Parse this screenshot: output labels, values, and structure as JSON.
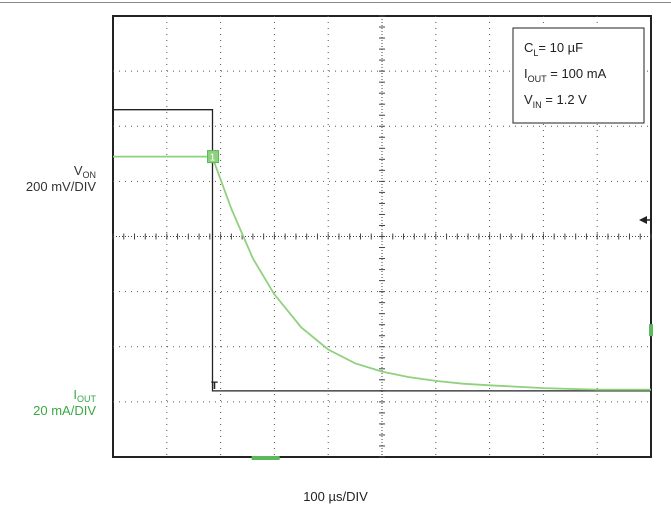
{
  "chart_data": {
    "type": "line",
    "title": "",
    "x_scale": {
      "per_div": 100,
      "unit_prefix": "100 ",
      "mu": "µ",
      "unit_suffix": "s/DIV",
      "divisions": 10
    },
    "y_scales": [
      {
        "name": "V",
        "sub": "ON",
        "per_div_label": "200 mV/DIV",
        "color": "#222222"
      },
      {
        "name": "I",
        "sub": "OUT",
        "per_div_label": "20 mA/DIV",
        "color": "#5cb85c"
      }
    ],
    "annotation": [
      {
        "main": "C",
        "sub": "L",
        "tail": "= 10 ",
        "mu": "µ",
        "end": "F"
      },
      {
        "main": "I",
        "sub": "OUT",
        "tail": " = 100 mA",
        "mu": "",
        "end": ""
      },
      {
        "main": "V",
        "sub": "IN",
        "tail": " = 1.2 V",
        "mu": "",
        "end": ""
      }
    ],
    "series": [
      {
        "name": "VON",
        "color": "#222222",
        "x": [
          0,
          185,
          185,
          195,
          1000
        ],
        "y": [
          6.3,
          6.3,
          1.2,
          1.2,
          1.2
        ]
      },
      {
        "name": "IOUT",
        "color": "#8fd17f",
        "x": [
          0,
          185,
          190,
          220,
          260,
          300,
          350,
          400,
          450,
          500,
          550,
          600,
          650,
          700,
          800,
          900,
          1000
        ],
        "y": [
          5.45,
          5.45,
          5.3,
          4.5,
          3.6,
          2.95,
          2.35,
          1.95,
          1.7,
          1.55,
          1.45,
          1.38,
          1.33,
          1.3,
          1.25,
          1.22,
          1.22
        ]
      }
    ],
    "markers": [
      {
        "label": "1",
        "series": "IOUT",
        "x": 185,
        "y": 5.45,
        "color": "#5cb85c"
      },
      {
        "label": "T",
        "series": "VON",
        "x": 185,
        "y": 1.2,
        "color": "#222222"
      }
    ],
    "xlim": [
      0,
      1000
    ],
    "ylim": [
      0,
      8
    ],
    "grid": true,
    "legend": "top-right"
  }
}
